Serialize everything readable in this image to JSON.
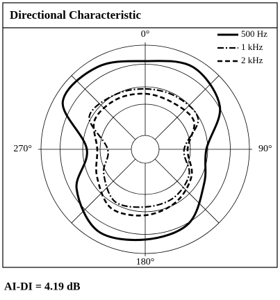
{
  "chart_data": {
    "type": "polar",
    "title": "Directional Characteristic",
    "footnote": "AI-DI = 4.19 dB",
    "theta": [
      0,
      30,
      60,
      90,
      120,
      150,
      180,
      210,
      240,
      270,
      300,
      330
    ],
    "thetaticks": [
      {
        "value": 0,
        "label": "0°"
      },
      {
        "value": 90,
        "label": "90°"
      },
      {
        "value": 180,
        "label": "180°"
      },
      {
        "value": 270,
        "label": "270°"
      }
    ],
    "thetagrid": [
      0,
      45,
      90,
      135,
      180,
      225,
      270,
      315
    ],
    "rlim": [
      0,
      30
    ],
    "rticks": [
      4,
      13,
      18,
      24.5,
      30
    ],
    "legend": "upper right",
    "series": [
      {
        "name": "500 Hz",
        "color": "#000000",
        "dash": "solid",
        "values": [
          25.4,
          27.4,
          24.8,
          17.6,
          19.6,
          24.8,
          26,
          27.2,
          22.8,
          16.8,
          27.4,
          27.4
        ]
      },
      {
        "name": "1 kHz",
        "color": "#000000",
        "dash": "dashdot",
        "values": [
          17.4,
          17.6,
          17.6,
          11.2,
          14.6,
          16.2,
          16.6,
          17.4,
          13.8,
          10.8,
          18.6,
          18
        ]
      },
      {
        "name": "2 kHz",
        "color": "#000000",
        "dash": "dashed",
        "values": [
          16,
          15.6,
          16.2,
          12.2,
          15.4,
          17.6,
          19,
          19.6,
          16,
          13.8,
          16.8,
          16.6
        ]
      }
    ]
  }
}
